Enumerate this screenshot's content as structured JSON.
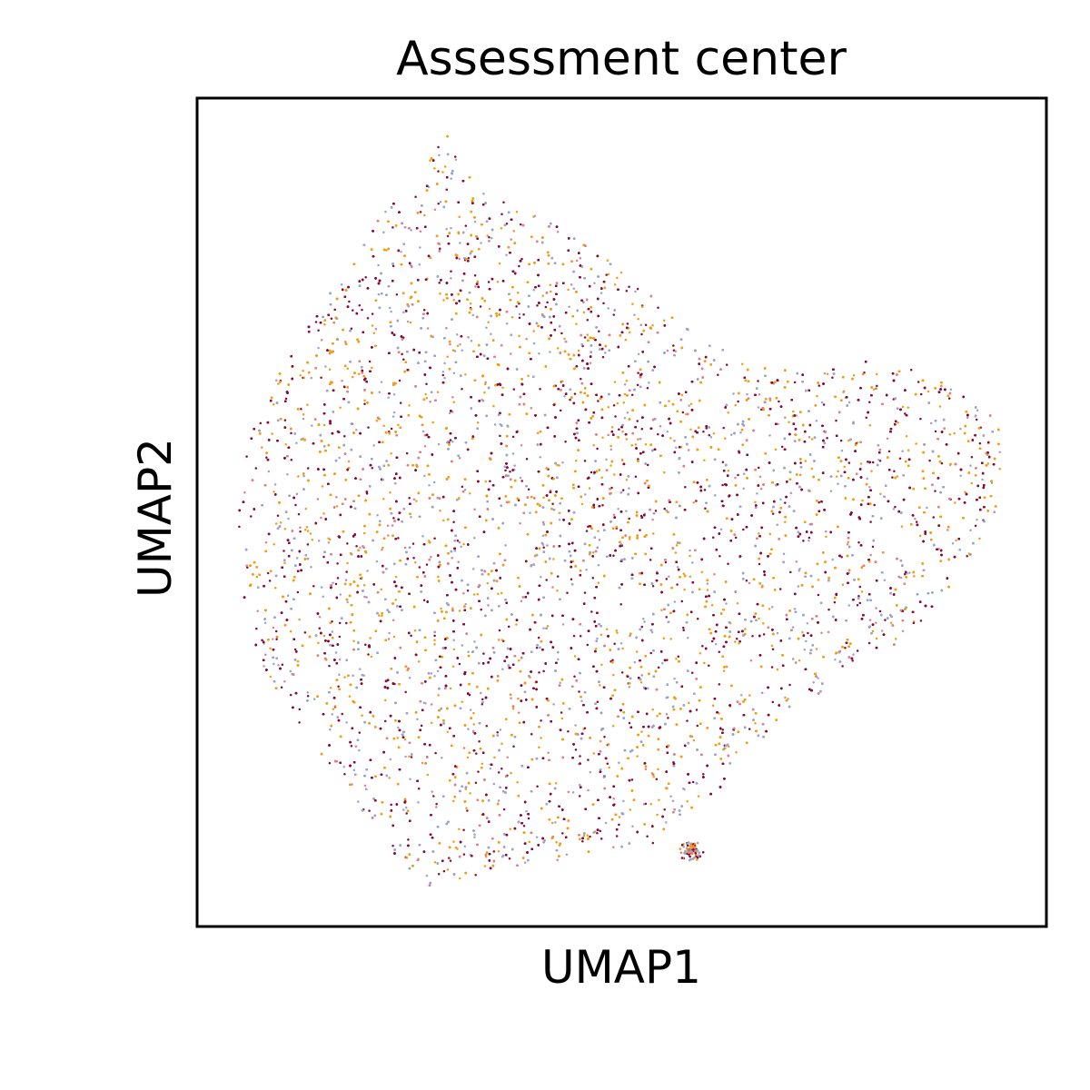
{
  "chart_data": {
    "type": "scatter",
    "title": "Assessment center",
    "xlabel": "UMAP1",
    "ylabel": "UMAP2",
    "xlim": [
      0,
      100
    ],
    "ylim": [
      0,
      100
    ],
    "grid": false,
    "legend": "none",
    "ticks_visible": false,
    "series": [
      {
        "color": "#8b0a34",
        "share": 0.34
      },
      {
        "color": "#f39c12",
        "share": 0.32
      },
      {
        "color": "#9aa3cc",
        "share": 0.24
      },
      {
        "color": "#e07f84",
        "share": 0.1
      }
    ],
    "point_cloud": {
      "count": 26000,
      "outline": [
        [
          29.5,
          95.6
        ],
        [
          26.5,
          91.6
        ],
        [
          21.5,
          85.8
        ],
        [
          14.5,
          74.6
        ],
        [
          9.5,
          66.4
        ],
        [
          6.0,
          58.6
        ],
        [
          4.7,
          50.8
        ],
        [
          5.5,
          39.8
        ],
        [
          7.5,
          31.6
        ],
        [
          11.5,
          24.8
        ],
        [
          16.5,
          18.2
        ],
        [
          21.5,
          10.4
        ],
        [
          27.0,
          4.7
        ],
        [
          32.5,
          5.6
        ],
        [
          39.5,
          7.0
        ],
        [
          45.0,
          8.8
        ],
        [
          50.0,
          9.0
        ],
        [
          54.5,
          10.3
        ],
        [
          61.5,
          16.6
        ],
        [
          69.0,
          24.3
        ],
        [
          76.0,
          30.4
        ],
        [
          82.0,
          33.8
        ],
        [
          87.0,
          38.4
        ],
        [
          91.5,
          45.6
        ],
        [
          95.5,
          52.8
        ],
        [
          95.5,
          58.0
        ],
        [
          93.0,
          62.4
        ],
        [
          86.0,
          66.8
        ],
        [
          78.5,
          68.4
        ],
        [
          72.0,
          66.6
        ],
        [
          67.0,
          67.6
        ],
        [
          60.5,
          70.6
        ],
        [
          57.0,
          72.8
        ],
        [
          54.5,
          75.4
        ],
        [
          50.5,
          78.6
        ],
        [
          47.5,
          81.1
        ],
        [
          43.5,
          83.8
        ],
        [
          39.0,
          86.5
        ],
        [
          33.0,
          89.9
        ]
      ],
      "blob": {
        "x": 58.2,
        "y": 9.1
      }
    }
  }
}
